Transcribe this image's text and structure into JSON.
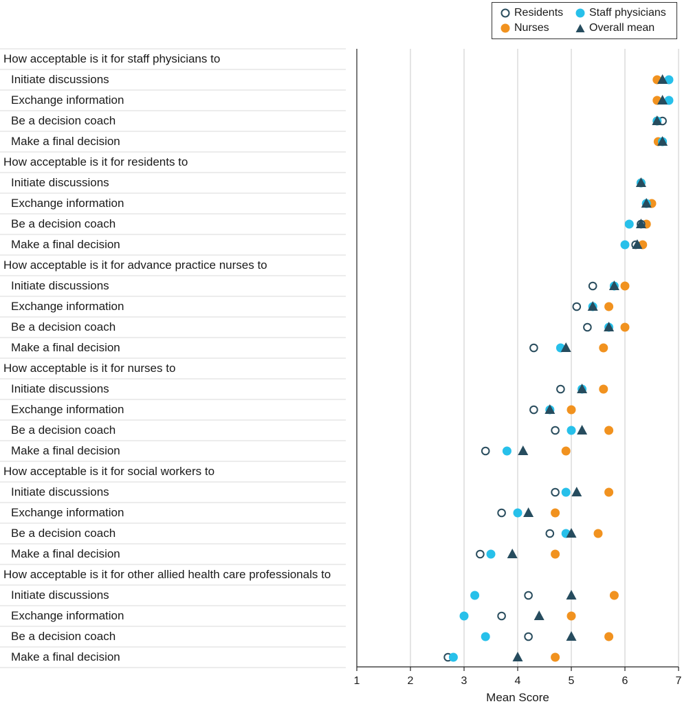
{
  "chart_data": {
    "type": "scatter",
    "title": "",
    "xlabel": "Mean Score",
    "ylabel": "",
    "xlim": [
      1,
      7
    ],
    "xticks": [
      1,
      2,
      3,
      4,
      5,
      6,
      7
    ],
    "grid": true,
    "legend_position": "top-right",
    "legend": [
      {
        "key": "residents",
        "label": "Residents"
      },
      {
        "key": "staff",
        "label": "Staff physicians"
      },
      {
        "key": "nurses",
        "label": "Nurses"
      },
      {
        "key": "overall",
        "label": "Overall mean"
      }
    ],
    "colors": {
      "residents": "#2a4d5e",
      "staff": "#27c0ea",
      "nurses": "#f1921f",
      "overall": "#264c5e",
      "grid": "#c8c8c8",
      "row_line": "#d9d9d9"
    },
    "groups": [
      {
        "title": "How acceptable is it for staff physicians to",
        "items": [
          {
            "label": "Initiate discussions",
            "residents": null,
            "staff": 6.82,
            "nurses": 6.6,
            "overall": 6.7
          },
          {
            "label": "Exchange information",
            "residents": null,
            "staff": 6.82,
            "nurses": 6.6,
            "overall": 6.7
          },
          {
            "label": "Be a decision coach",
            "residents": 6.7,
            "staff": 6.6,
            "nurses": 6.6,
            "overall": 6.6
          },
          {
            "label": "Make a final decision",
            "residents": 6.7,
            "staff": 6.7,
            "nurses": 6.62,
            "overall": 6.7
          }
        ]
      },
      {
        "title": "How acceptable is it for residents to",
        "items": [
          {
            "label": "Initiate discussions",
            "residents": 6.3,
            "staff": 6.3,
            "nurses": 6.3,
            "overall": 6.3
          },
          {
            "label": "Exchange information",
            "residents": 6.4,
            "staff": 6.4,
            "nurses": 6.5,
            "overall": 6.4
          },
          {
            "label": "Be a decision coach",
            "residents": 6.3,
            "staff": 6.08,
            "nurses": 6.4,
            "overall": 6.3
          },
          {
            "label": "Make a final decision",
            "residents": 6.2,
            "staff": 6.0,
            "nurses": 6.33,
            "overall": 6.23
          }
        ]
      },
      {
        "title": "How acceptable is it for advance practice nurses to",
        "items": [
          {
            "label": "Initiate discussions",
            "residents": 5.4,
            "staff": 5.8,
            "nurses": 6.0,
            "overall": 5.8
          },
          {
            "label": "Exchange information",
            "residents": 5.1,
            "staff": 5.4,
            "nurses": 5.7,
            "overall": 5.4
          },
          {
            "label": "Be a decision coach",
            "residents": 5.3,
            "staff": 5.7,
            "nurses": 6.0,
            "overall": 5.7
          },
          {
            "label": "Make a final decision",
            "residents": 4.3,
            "staff": 4.8,
            "nurses": 5.6,
            "overall": 4.9
          }
        ]
      },
      {
        "title": "How acceptable is it for nurses to",
        "items": [
          {
            "label": "Initiate discussions",
            "residents": 4.8,
            "staff": 5.2,
            "nurses": 5.6,
            "overall": 5.2
          },
          {
            "label": "Exchange information",
            "residents": 4.3,
            "staff": 4.6,
            "nurses": 5.0,
            "overall": 4.6
          },
          {
            "label": "Be a decision coach",
            "residents": 4.7,
            "staff": 5.0,
            "nurses": 5.7,
            "overall": 5.2
          },
          {
            "label": "Make a final decision",
            "residents": 3.4,
            "staff": 3.8,
            "nurses": 4.9,
            "overall": 4.1
          }
        ]
      },
      {
        "title": "How acceptable is it for social workers to",
        "items": [
          {
            "label": "Initiate discussions",
            "residents": 4.7,
            "staff": 4.9,
            "nurses": 5.7,
            "overall": 5.1
          },
          {
            "label": "Exchange information",
            "residents": 3.7,
            "staff": 4.0,
            "nurses": 4.7,
            "overall": 4.2
          },
          {
            "label": "Be a decision coach",
            "residents": 4.6,
            "staff": 4.9,
            "nurses": 5.5,
            "overall": 5.0
          },
          {
            "label": "Make a final decision",
            "residents": 3.3,
            "staff": 3.5,
            "nurses": 4.7,
            "overall": 3.9
          }
        ]
      },
      {
        "title": "How acceptable is it for other allied health care professionals to",
        "items": [
          {
            "label": "Initiate discussions",
            "residents": 4.2,
            "staff": 3.2,
            "nurses": 5.8,
            "overall": 5.0
          },
          {
            "label": "Exchange information",
            "residents": 3.7,
            "staff": 3.0,
            "nurses": 5.0,
            "overall": 4.4
          },
          {
            "label": "Be a decision coach",
            "residents": 4.2,
            "staff": 3.4,
            "nurses": 5.7,
            "overall": 5.0
          },
          {
            "label": "Make a final decision",
            "residents": 2.7,
            "staff": 2.8,
            "nurses": 4.7,
            "overall": 4.0
          }
        ]
      }
    ]
  }
}
